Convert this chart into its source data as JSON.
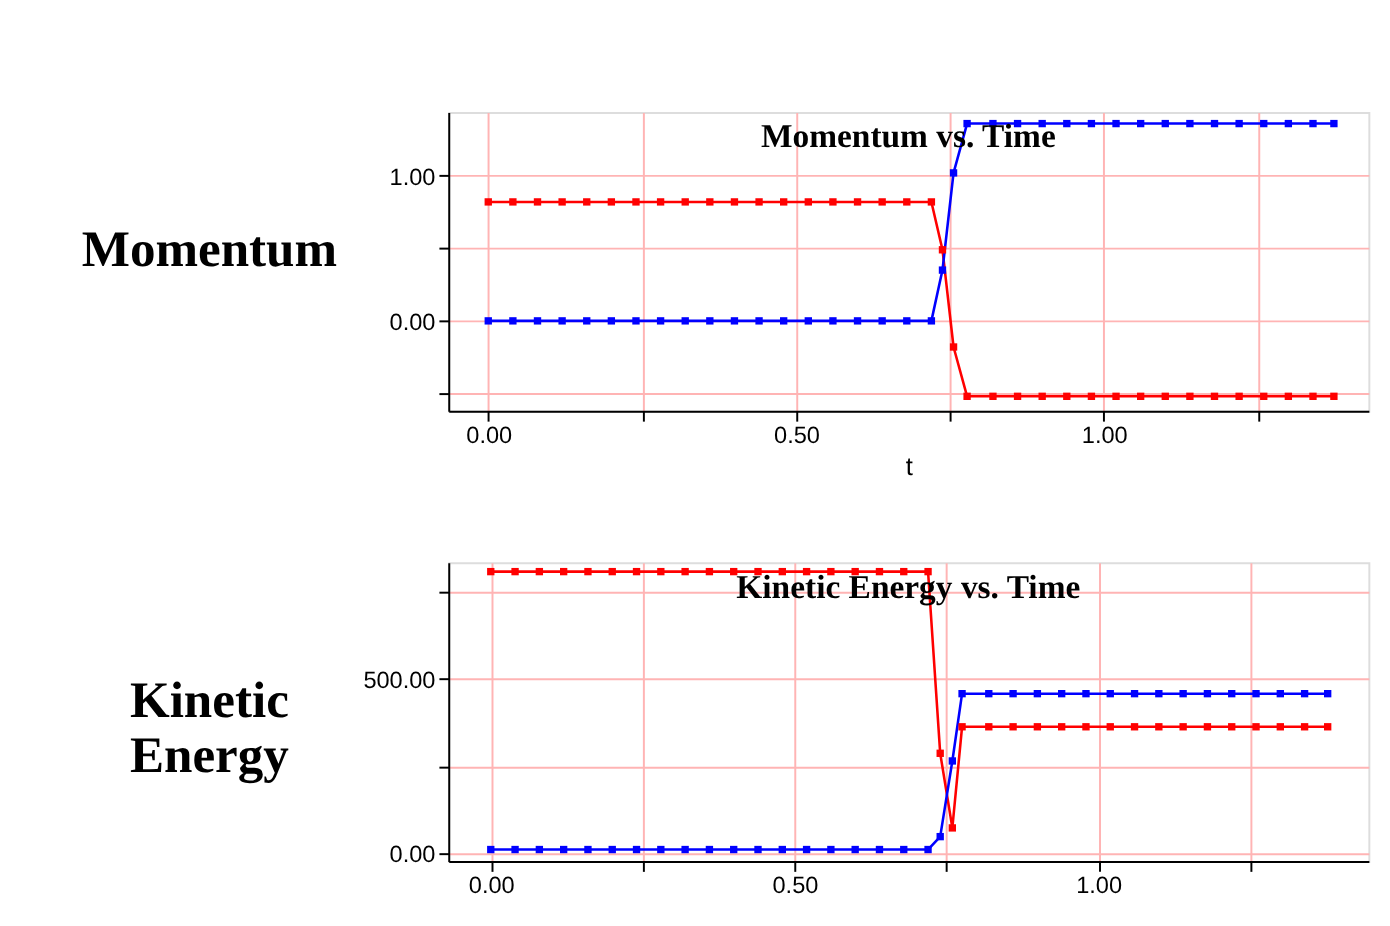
{
  "chart_data": [
    {
      "type": "line",
      "title": "Momentum vs. Time",
      "xlabel": "t",
      "ylabel": "Momentum",
      "x": [
        0,
        0.04,
        0.08,
        0.12,
        0.16,
        0.2,
        0.24,
        0.28,
        0.32,
        0.36,
        0.4,
        0.44,
        0.48,
        0.52,
        0.56,
        0.6,
        0.64,
        0.68,
        0.72,
        0.738,
        0.756,
        0.778,
        0.82,
        0.86,
        0.9,
        0.94,
        0.98,
        1.02,
        1.06,
        1.1,
        1.14,
        1.18,
        1.22,
        1.26,
        1.3,
        1.34,
        1.374
      ],
      "series": [
        {
          "color": "#ff0000",
          "values": [
            0.82,
            0.82,
            0.82,
            0.82,
            0.82,
            0.82,
            0.82,
            0.82,
            0.82,
            0.82,
            0.82,
            0.82,
            0.82,
            0.82,
            0.82,
            0.82,
            0.82,
            0.82,
            0.82,
            0.49,
            -0.18,
            -0.52,
            -0.52,
            -0.52,
            -0.52,
            -0.52,
            -0.52,
            -0.52,
            -0.52,
            -0.52,
            -0.52,
            -0.52,
            -0.52,
            -0.52,
            -0.52,
            -0.52,
            -0.52
          ]
        },
        {
          "color": "#0000ff",
          "values": [
            0,
            0,
            0,
            0,
            0,
            0,
            0,
            0,
            0,
            0,
            0,
            0,
            0,
            0,
            0,
            0,
            0,
            0,
            0,
            0.35,
            1.02,
            1.36,
            1.36,
            1.36,
            1.36,
            1.36,
            1.36,
            1.36,
            1.36,
            1.36,
            1.36,
            1.36,
            1.36,
            1.36,
            1.36,
            1.36,
            1.36
          ]
        }
      ],
      "xlim": [
        -0.065,
        1.43
      ],
      "ylim": [
        -0.62,
        1.44
      ],
      "xticks": [
        {
          "value": 0,
          "label": "0.00"
        },
        {
          "value": 0.25,
          "label": null
        },
        {
          "value": 0.5,
          "label": "0.50"
        },
        {
          "value": 0.75,
          "label": null
        },
        {
          "value": 1,
          "label": "1.00"
        },
        {
          "value": 1.25,
          "label": null
        }
      ],
      "yticks": [
        {
          "value": -0.5,
          "label": null
        },
        {
          "value": 0,
          "label": "0.00"
        },
        {
          "value": 0.5,
          "label": null
        },
        {
          "value": 1,
          "label": "1.00"
        }
      ],
      "grid": true,
      "marker": "square",
      "line_style": "solid"
    },
    {
      "type": "line",
      "title": "Kinetic Energy vs. Time",
      "ylabel": "Kinetic Energy",
      "x": [
        0,
        0.04,
        0.08,
        0.12,
        0.16,
        0.2,
        0.24,
        0.28,
        0.32,
        0.36,
        0.4,
        0.44,
        0.48,
        0.52,
        0.56,
        0.6,
        0.64,
        0.68,
        0.72,
        0.74,
        0.76,
        0.776,
        0.82,
        0.86,
        0.9,
        0.94,
        0.98,
        1.02,
        1.06,
        1.1,
        1.14,
        1.18,
        1.22,
        1.26,
        1.3,
        1.34,
        1.378
      ],
      "series": [
        {
          "color": "#ff0000",
          "values": [
            807,
            807,
            807,
            807,
            807,
            807,
            807,
            807,
            807,
            807,
            807,
            807,
            807,
            807,
            807,
            807,
            807,
            807,
            807,
            286,
            72,
            362,
            362,
            362,
            362,
            362,
            362,
            362,
            362,
            362,
            362,
            362,
            362,
            362,
            362,
            362,
            362
          ]
        },
        {
          "color": "#0000ff",
          "values": [
            10,
            10,
            10,
            10,
            10,
            10,
            10,
            10,
            10,
            10,
            10,
            10,
            10,
            10,
            10,
            10,
            10,
            10,
            10,
            47,
            264,
            457,
            457,
            457,
            457,
            457,
            457,
            457,
            457,
            457,
            457,
            457,
            457,
            457,
            457,
            457,
            457
          ]
        }
      ],
      "xlim": [
        -0.07,
        1.445
      ],
      "ylim": [
        -23,
        834
      ],
      "xticks": [
        {
          "value": 0,
          "label": "0.00"
        },
        {
          "value": 0.25,
          "label": null
        },
        {
          "value": 0.5,
          "label": "0.50"
        },
        {
          "value": 0.75,
          "label": null
        },
        {
          "value": 1,
          "label": "1.00"
        },
        {
          "value": 1.25,
          "label": null
        }
      ],
      "yticks": [
        {
          "value": 0,
          "label": "0.00"
        },
        {
          "value": 250,
          "label": null
        },
        {
          "value": 500,
          "label": "500.00"
        },
        {
          "value": 750,
          "label": null
        }
      ],
      "grid": true,
      "marker": "square",
      "line_style": "solid"
    }
  ]
}
